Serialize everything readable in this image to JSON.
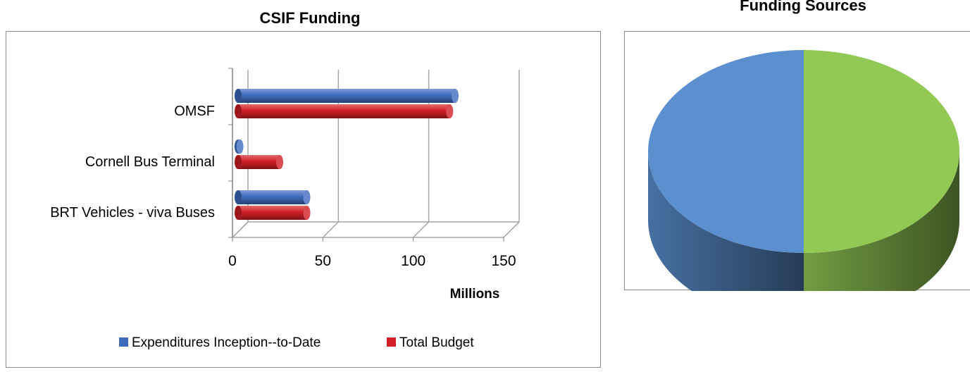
{
  "chart_data": [
    {
      "type": "bar",
      "orientation": "horizontal",
      "title": "CSIF Funding",
      "categories": [
        "BRT Vehicles - viva Buses",
        "Cornell Bus Terminal",
        "OMSF"
      ],
      "series": [
        {
          "name": "Expenditures Inception--to-Date",
          "values": [
            38,
            1,
            120
          ],
          "color": "#3f6bbf"
        },
        {
          "name": "Total Budget",
          "values": [
            38,
            23,
            117
          ],
          "color": "#d21f27"
        }
      ],
      "xlabel": "Millions",
      "ylabel": "",
      "xlim": [
        0,
        150
      ],
      "x_ticks": [
        "0",
        "50",
        "100",
        "150"
      ],
      "grid": "vertical",
      "legend": "bottom"
    },
    {
      "type": "pie",
      "title": "Funding Sources",
      "style": "3d",
      "slices": [
        {
          "value": 50,
          "color": "#5b8fd0"
        },
        {
          "value": 50,
          "color": "#92c954"
        }
      ]
    }
  ]
}
